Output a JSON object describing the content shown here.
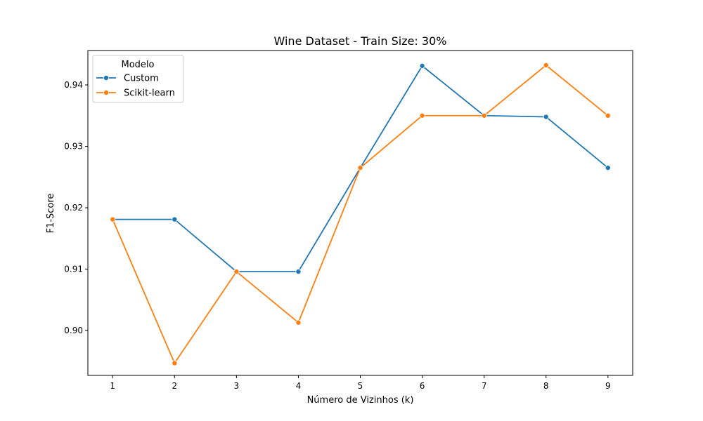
{
  "chart_data": {
    "type": "line",
    "title": "Wine Dataset - Train Size: 30%",
    "xlabel": "Número de Vizinhos (k)",
    "ylabel": "F1-Score",
    "x": [
      1,
      2,
      3,
      4,
      5,
      6,
      7,
      8,
      9
    ],
    "xlim": [
      0.6,
      9.4
    ],
    "ylim": [
      0.8927,
      0.9456
    ],
    "yticks": [
      0.9,
      0.91,
      0.92,
      0.93,
      0.94
    ],
    "ytick_labels": [
      "0.90",
      "0.91",
      "0.92",
      "0.93",
      "0.94"
    ],
    "grid": false,
    "legend": {
      "title": "Modelo",
      "position": "top-left"
    },
    "series": [
      {
        "name": "Custom",
        "color": "#1f77b4",
        "marker": "circle",
        "values": [
          0.9181,
          0.9181,
          0.9096,
          0.9096,
          0.9265,
          0.9431,
          0.935,
          0.9348,
          0.9265
        ]
      },
      {
        "name": "Scikit-learn",
        "color": "#ff7f0e",
        "marker": "circle",
        "values": [
          0.9181,
          0.8947,
          0.9096,
          0.9013,
          0.9265,
          0.935,
          0.935,
          0.9432,
          0.935
        ]
      }
    ]
  }
}
